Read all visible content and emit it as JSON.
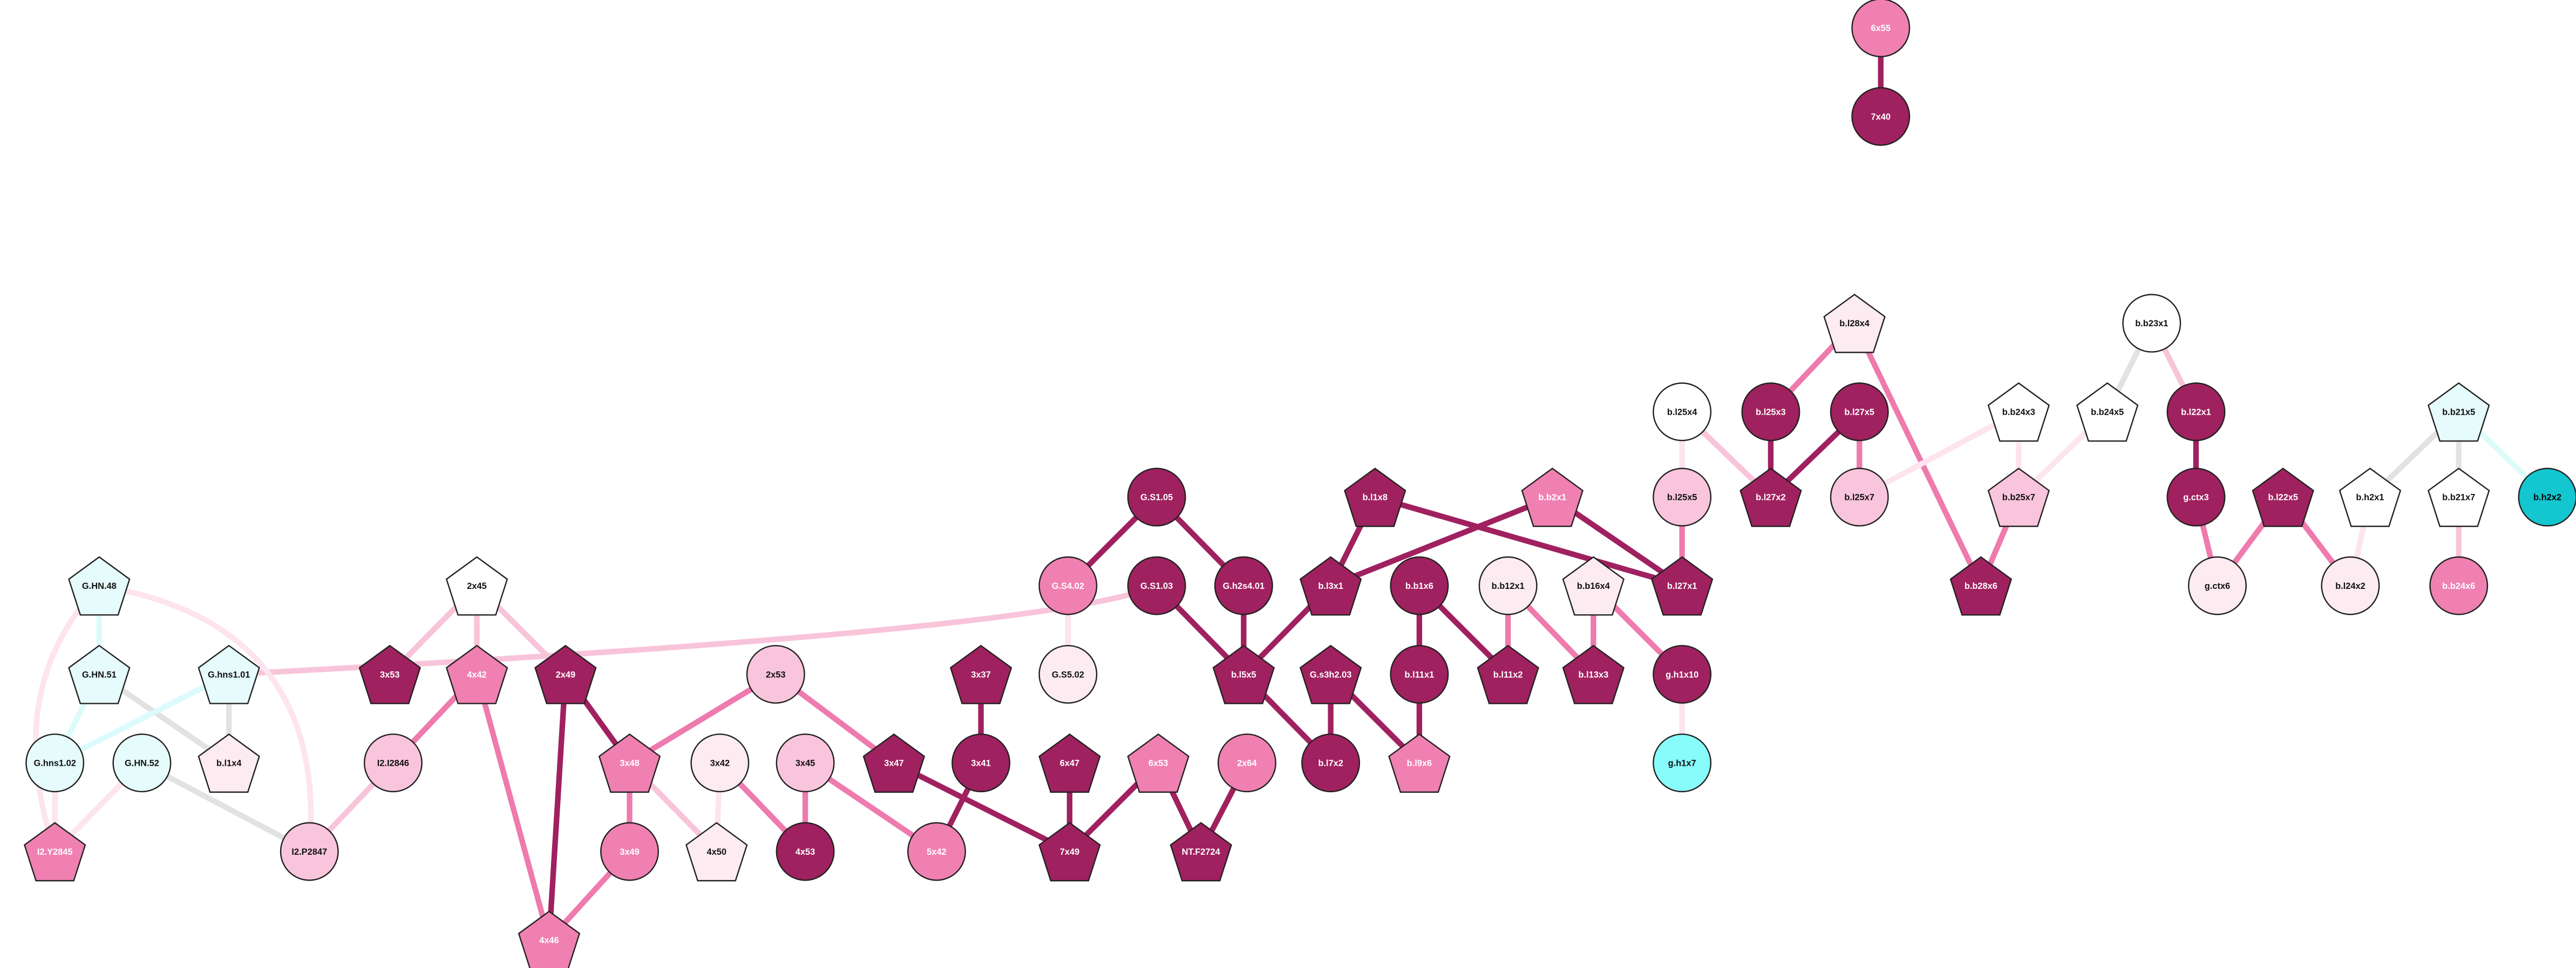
{
  "nodes": [
    {
      "label": "6x55"
    },
    {
      "label": "7x40"
    },
    {
      "label": "b.l28x4"
    },
    {
      "label": "b.l25x4"
    },
    {
      "label": "b.l25x3"
    },
    {
      "label": "b.l27x5"
    },
    {
      "label": "b.b24x3"
    },
    {
      "label": "b.b24x5"
    },
    {
      "label": "b.b23x1"
    },
    {
      "label": "b.l22x1"
    },
    {
      "label": "b.b21x5"
    },
    {
      "label": "b.h2x2"
    },
    {
      "label": "b.l25x5"
    },
    {
      "label": "b.l27x2"
    },
    {
      "label": "b.l25x7"
    },
    {
      "label": "b.b25x7"
    },
    {
      "label": "g.ctx3"
    },
    {
      "label": "b.l22x5"
    },
    {
      "label": "b.h2x1"
    },
    {
      "label": "b.b21x7"
    },
    {
      "label": "b.l1x8"
    },
    {
      "label": "b.b2x1"
    },
    {
      "label": "b.b28x6"
    },
    {
      "label": "g.ctx6"
    },
    {
      "label": "b.l24x2"
    },
    {
      "label": "b.b24x6"
    },
    {
      "label": "G.S1.05"
    },
    {
      "label": "G.S4.02"
    },
    {
      "label": "G.h2s4.01"
    },
    {
      "label": "G.S1.03"
    },
    {
      "label": "b.l3x1"
    },
    {
      "label": "b.b1x6"
    },
    {
      "label": "b.b12x1"
    },
    {
      "label": "b.b16x4"
    },
    {
      "label": "b.l27x1"
    },
    {
      "label": "G.S5.02"
    },
    {
      "label": "b.l5x5"
    },
    {
      "label": "G.s3h2.03"
    },
    {
      "label": "b.l11x1"
    },
    {
      "label": "b.l11x2"
    },
    {
      "label": "b.l13x3"
    },
    {
      "label": "g.h1x10"
    },
    {
      "label": "b.l7x2"
    },
    {
      "label": "b.l9x6"
    },
    {
      "label": "g.h1x7"
    },
    {
      "label": "G.HN.48"
    },
    {
      "label": "G.HN.51"
    },
    {
      "label": "G.hns1.01"
    },
    {
      "label": "G.hns1.02"
    },
    {
      "label": "G.HN.52"
    },
    {
      "label": "b.l1x4"
    },
    {
      "label": "I2.Y2845"
    },
    {
      "label": "I2.P2847"
    },
    {
      "label": "2x45"
    },
    {
      "label": "3x53"
    },
    {
      "label": "4x42"
    },
    {
      "label": "2x49"
    },
    {
      "label": "2x53"
    },
    {
      "label": "3x37"
    },
    {
      "label": "I2.I2846"
    },
    {
      "label": "3x48"
    },
    {
      "label": "3x42"
    },
    {
      "label": "3x45"
    },
    {
      "label": "3x47"
    },
    {
      "label": "3x41"
    },
    {
      "label": "6x47"
    },
    {
      "label": "6x53"
    },
    {
      "label": "2x64"
    },
    {
      "label": "3x49"
    },
    {
      "label": "4x50"
    },
    {
      "label": "4x53"
    },
    {
      "label": "5x42"
    },
    {
      "label": "7x49"
    },
    {
      "label": "NT.F2724"
    },
    {
      "label": "4x46"
    }
  ]
}
